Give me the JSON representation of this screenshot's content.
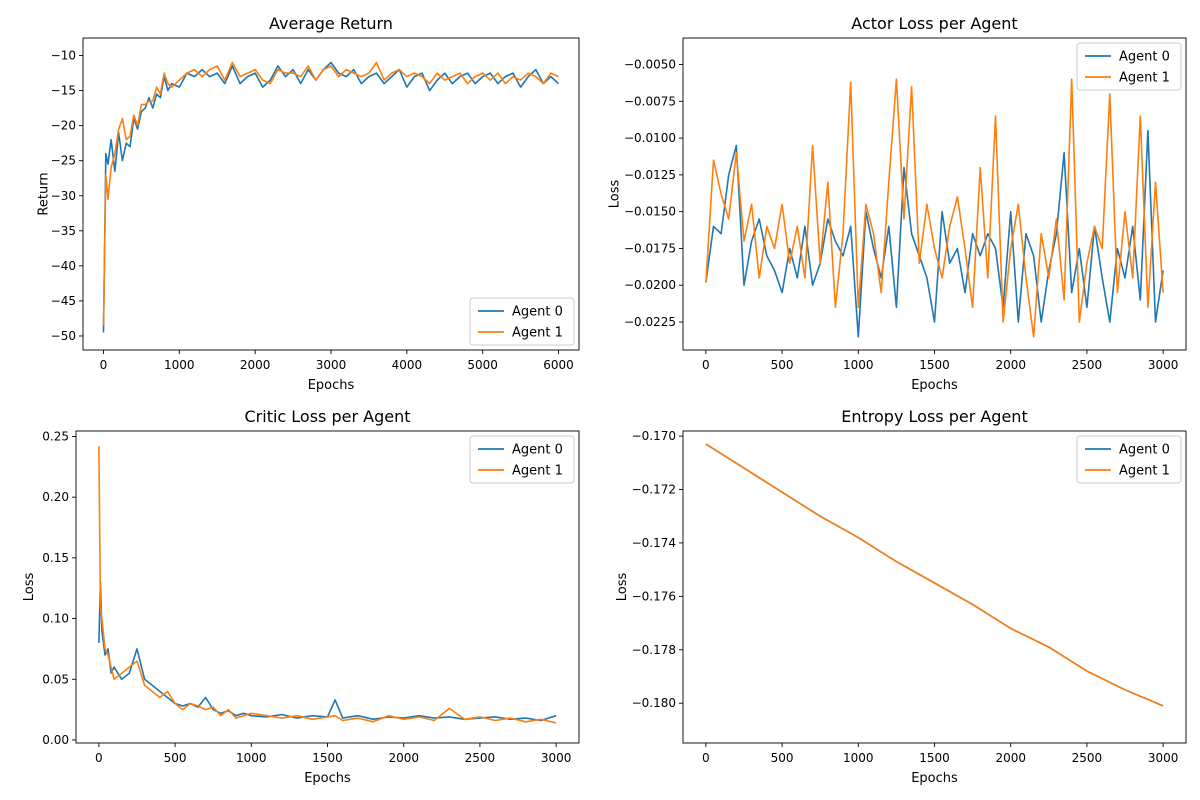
{
  "colors": {
    "agent0": "#1f77b4",
    "agent1": "#ff7f0e"
  },
  "chart_data": [
    {
      "id": "avg-return",
      "type": "line",
      "title": "Average Return",
      "xlabel": "Epochs",
      "ylabel": "Return",
      "xlim": [
        -270,
        6270
      ],
      "ylim": [
        -52.0,
        -7.5
      ],
      "xticks": [
        0,
        1000,
        2000,
        3000,
        4000,
        5000,
        6000
      ],
      "xtick_labels": [
        "0",
        "1000",
        "2000",
        "3000",
        "4000",
        "5000",
        "6000"
      ],
      "yticks": [
        -50,
        -45,
        -40,
        -35,
        -30,
        -25,
        -20,
        -15,
        -10
      ],
      "ytick_labels": [
        "−50",
        "−45",
        "−40",
        "−35",
        "−30",
        "−25",
        "−20",
        "−15",
        "−10"
      ],
      "legend_position": "lower-right",
      "series": [
        {
          "name": "Agent 0",
          "color": "#1f77b4",
          "x": [
            0,
            30,
            60,
            100,
            150,
            200,
            250,
            300,
            350,
            400,
            450,
            500,
            550,
            600,
            650,
            700,
            750,
            800,
            850,
            900,
            1000,
            1100,
            1200,
            1300,
            1400,
            1500,
            1600,
            1700,
            1800,
            1900,
            2000,
            2100,
            2200,
            2300,
            2400,
            2500,
            2600,
            2700,
            2800,
            2900,
            3000,
            3100,
            3200,
            3300,
            3400,
            3500,
            3600,
            3700,
            3800,
            3900,
            4000,
            4100,
            4200,
            4300,
            4400,
            4500,
            4600,
            4700,
            4800,
            4900,
            5000,
            5100,
            5200,
            5300,
            5400,
            5500,
            5600,
            5700,
            5800,
            5900,
            6000
          ],
          "y": [
            -49.5,
            -24,
            -25.5,
            -22,
            -26.5,
            -21,
            -25,
            -22.5,
            -23,
            -19,
            -20.5,
            -18,
            -17.5,
            -16,
            -17.5,
            -15.5,
            -16,
            -13,
            -15,
            -14,
            -14.5,
            -12.5,
            -13,
            -12,
            -13,
            -12.5,
            -14,
            -11.5,
            -14,
            -13,
            -12.5,
            -14.5,
            -13.5,
            -11.5,
            -13,
            -12,
            -14,
            -12,
            -13.5,
            -12,
            -11,
            -12.5,
            -13,
            -12,
            -14,
            -13,
            -12.5,
            -14,
            -13,
            -12,
            -14.5,
            -13,
            -12.5,
            -15,
            -13.5,
            -12.5,
            -14,
            -13,
            -12.5,
            -14,
            -13,
            -12.5,
            -14,
            -13,
            -12.5,
            -14.5,
            -13,
            -12,
            -14,
            -13,
            -14
          ]
        },
        {
          "name": "Agent 1",
          "color": "#ff7f0e",
          "x": [
            0,
            30,
            60,
            100,
            150,
            200,
            250,
            300,
            350,
            400,
            450,
            500,
            550,
            600,
            650,
            700,
            750,
            800,
            850,
            900,
            1000,
            1100,
            1200,
            1300,
            1400,
            1500,
            1600,
            1700,
            1800,
            1900,
            2000,
            2100,
            2200,
            2300,
            2400,
            2500,
            2600,
            2700,
            2800,
            2900,
            3000,
            3100,
            3200,
            3300,
            3400,
            3500,
            3600,
            3700,
            3800,
            3900,
            4000,
            4100,
            4200,
            4300,
            4400,
            4500,
            4600,
            4700,
            4800,
            4900,
            5000,
            5100,
            5200,
            5300,
            5400,
            5500,
            5600,
            5700,
            5800,
            5900,
            6000
          ],
          "y": [
            -48.5,
            -27,
            -30.5,
            -26,
            -24,
            -20.5,
            -19,
            -22,
            -21.5,
            -18.5,
            -20,
            -17,
            -17,
            -16.5,
            -16.5,
            -14.5,
            -15.5,
            -12.5,
            -14,
            -14.5,
            -13.5,
            -12.5,
            -12,
            -13,
            -12,
            -11.5,
            -13.5,
            -11,
            -13,
            -12.5,
            -12,
            -13.5,
            -14,
            -12,
            -12.5,
            -12.5,
            -13,
            -11.5,
            -13.5,
            -12,
            -11.5,
            -13,
            -12,
            -12.5,
            -13,
            -12.5,
            -11,
            -13.5,
            -12.5,
            -12,
            -13,
            -12.5,
            -13,
            -14,
            -12.5,
            -13.5,
            -13,
            -12.5,
            -14,
            -13,
            -12.5,
            -13.5,
            -12.5,
            -14,
            -13,
            -13.5,
            -12.5,
            -13,
            -14,
            -12.5,
            -13
          ]
        }
      ]
    },
    {
      "id": "actor-loss",
      "type": "line",
      "title": "Actor Loss per Agent",
      "xlabel": "Epochs",
      "ylabel": "Loss",
      "xlim": [
        -150,
        3150
      ],
      "ylim": [
        -0.0244,
        -0.0032
      ],
      "xticks": [
        0,
        500,
        1000,
        1500,
        2000,
        2500,
        3000
      ],
      "xtick_labels": [
        "0",
        "500",
        "1000",
        "1500",
        "2000",
        "2500",
        "3000"
      ],
      "yticks": [
        -0.0225,
        -0.02,
        -0.0175,
        -0.015,
        -0.0125,
        -0.01,
        -0.0075,
        -0.005
      ],
      "ytick_labels": [
        "−0.0225",
        "−0.0200",
        "−0.0175",
        "−0.0150",
        "−0.0125",
        "−0.0100",
        "−0.0075",
        "−0.0050"
      ],
      "legend_position": "top-right",
      "series": [
        {
          "name": "Agent 0",
          "color": "#1f77b4",
          "x": [
            0,
            50,
            100,
            150,
            200,
            250,
            300,
            350,
            400,
            450,
            500,
            550,
            600,
            650,
            700,
            750,
            800,
            850,
            900,
            950,
            1000,
            1050,
            1100,
            1150,
            1200,
            1250,
            1300,
            1350,
            1400,
            1450,
            1500,
            1550,
            1600,
            1650,
            1700,
            1750,
            1800,
            1850,
            1900,
            1950,
            2000,
            2050,
            2100,
            2150,
            2200,
            2250,
            2300,
            2350,
            2400,
            2450,
            2500,
            2550,
            2600,
            2650,
            2700,
            2750,
            2800,
            2850,
            2900,
            2950,
            3000
          ],
          "y": [
            -0.0198,
            -0.016,
            -0.0165,
            -0.0125,
            -0.0105,
            -0.02,
            -0.017,
            -0.0155,
            -0.018,
            -0.019,
            -0.0205,
            -0.0175,
            -0.0195,
            -0.016,
            -0.02,
            -0.0185,
            -0.0155,
            -0.017,
            -0.018,
            -0.016,
            -0.0235,
            -0.015,
            -0.0175,
            -0.0195,
            -0.016,
            -0.0215,
            -0.012,
            -0.0165,
            -0.018,
            -0.0195,
            -0.0225,
            -0.015,
            -0.0185,
            -0.0175,
            -0.0205,
            -0.0165,
            -0.018,
            -0.0165,
            -0.0175,
            -0.0215,
            -0.015,
            -0.0225,
            -0.0165,
            -0.018,
            -0.0225,
            -0.019,
            -0.0165,
            -0.011,
            -0.0205,
            -0.0175,
            -0.0215,
            -0.016,
            -0.0195,
            -0.0225,
            -0.0175,
            -0.0195,
            -0.016,
            -0.021,
            -0.0095,
            -0.0225,
            -0.019
          ]
        },
        {
          "name": "Agent 1",
          "color": "#ff7f0e",
          "x": [
            0,
            50,
            100,
            150,
            200,
            250,
            300,
            350,
            400,
            450,
            500,
            550,
            600,
            650,
            700,
            750,
            800,
            850,
            900,
            950,
            1000,
            1050,
            1100,
            1150,
            1200,
            1250,
            1300,
            1350,
            1400,
            1450,
            1500,
            1550,
            1600,
            1650,
            1700,
            1750,
            1800,
            1850,
            1900,
            1950,
            2000,
            2050,
            2100,
            2150,
            2200,
            2250,
            2300,
            2350,
            2400,
            2450,
            2500,
            2550,
            2600,
            2650,
            2700,
            2750,
            2800,
            2850,
            2900,
            2950,
            3000
          ],
          "y": [
            -0.0198,
            -0.0115,
            -0.0138,
            -0.0155,
            -0.011,
            -0.017,
            -0.0145,
            -0.0195,
            -0.016,
            -0.0175,
            -0.0145,
            -0.0185,
            -0.016,
            -0.0195,
            -0.0105,
            -0.0185,
            -0.013,
            -0.0215,
            -0.0165,
            -0.0062,
            -0.0215,
            -0.0145,
            -0.0165,
            -0.0205,
            -0.013,
            -0.006,
            -0.0155,
            -0.0065,
            -0.0185,
            -0.0145,
            -0.0175,
            -0.0195,
            -0.016,
            -0.014,
            -0.0175,
            -0.0215,
            -0.012,
            -0.0195,
            -0.0085,
            -0.0225,
            -0.0175,
            -0.0145,
            -0.0195,
            -0.0235,
            -0.0165,
            -0.0195,
            -0.0155,
            -0.021,
            -0.006,
            -0.0225,
            -0.0185,
            -0.016,
            -0.0175,
            -0.007,
            -0.0205,
            -0.015,
            -0.0195,
            -0.0085,
            -0.0215,
            -0.013,
            -0.0205
          ]
        }
      ]
    },
    {
      "id": "critic-loss",
      "type": "line",
      "title": "Critic Loss per Agent",
      "xlabel": "Epochs",
      "ylabel": "Loss",
      "xlim": [
        -150,
        3150
      ],
      "ylim": [
        -0.0025,
        0.2545
      ],
      "xticks": [
        0,
        500,
        1000,
        1500,
        2000,
        2500,
        3000
      ],
      "xtick_labels": [
        "0",
        "500",
        "1000",
        "1500",
        "2000",
        "2500",
        "3000"
      ],
      "yticks": [
        0.0,
        0.05,
        0.1,
        0.15,
        0.2,
        0.25
      ],
      "ytick_labels": [
        "0.00",
        "0.05",
        "0.10",
        "0.15",
        "0.20",
        "0.25"
      ],
      "legend_position": "top-right",
      "series": [
        {
          "name": "Agent 0",
          "color": "#1f77b4",
          "x": [
            0,
            10,
            20,
            40,
            60,
            80,
            100,
            150,
            200,
            250,
            300,
            350,
            400,
            450,
            500,
            550,
            600,
            650,
            700,
            750,
            800,
            850,
            900,
            950,
            1000,
            1100,
            1200,
            1300,
            1400,
            1500,
            1550,
            1600,
            1700,
            1800,
            1900,
            2000,
            2100,
            2200,
            2300,
            2400,
            2500,
            2600,
            2700,
            2800,
            2900,
            3000
          ],
          "y": [
            0.08,
            0.13,
            0.09,
            0.07,
            0.075,
            0.055,
            0.06,
            0.05,
            0.055,
            0.075,
            0.05,
            0.045,
            0.04,
            0.035,
            0.03,
            0.028,
            0.03,
            0.027,
            0.035,
            0.025,
            0.022,
            0.024,
            0.02,
            0.022,
            0.02,
            0.019,
            0.021,
            0.018,
            0.02,
            0.019,
            0.033,
            0.018,
            0.02,
            0.017,
            0.019,
            0.018,
            0.02,
            0.018,
            0.019,
            0.017,
            0.018,
            0.019,
            0.017,
            0.018,
            0.016,
            0.02
          ]
        },
        {
          "name": "Agent 1",
          "color": "#ff7f0e",
          "x": [
            0,
            10,
            20,
            40,
            60,
            80,
            100,
            150,
            200,
            250,
            300,
            350,
            400,
            450,
            500,
            550,
            600,
            650,
            700,
            750,
            800,
            850,
            900,
            950,
            1000,
            1100,
            1200,
            1300,
            1400,
            1500,
            1550,
            1600,
            1700,
            1800,
            1900,
            2000,
            2100,
            2200,
            2300,
            2400,
            2500,
            2600,
            2700,
            2800,
            2900,
            3000
          ],
          "y": [
            0.242,
            0.11,
            0.1,
            0.075,
            0.07,
            0.06,
            0.05,
            0.055,
            0.06,
            0.065,
            0.045,
            0.04,
            0.035,
            0.04,
            0.03,
            0.025,
            0.03,
            0.028,
            0.025,
            0.027,
            0.02,
            0.025,
            0.018,
            0.02,
            0.022,
            0.02,
            0.018,
            0.02,
            0.017,
            0.019,
            0.02,
            0.016,
            0.018,
            0.015,
            0.02,
            0.017,
            0.019,
            0.016,
            0.026,
            0.017,
            0.019,
            0.016,
            0.018,
            0.015,
            0.017,
            0.014
          ]
        }
      ]
    },
    {
      "id": "entropy-loss",
      "type": "line",
      "title": "Entropy Loss per Agent",
      "xlabel": "Epochs",
      "ylabel": "Loss",
      "xlim": [
        -150,
        3150
      ],
      "ylim": [
        -0.18149,
        -0.16981
      ],
      "xticks": [
        0,
        500,
        1000,
        1500,
        2000,
        2500,
        3000
      ],
      "xtick_labels": [
        "0",
        "500",
        "1000",
        "1500",
        "2000",
        "2500",
        "3000"
      ],
      "yticks": [
        -0.18,
        -0.178,
        -0.176,
        -0.174,
        -0.172,
        -0.17
      ],
      "ytick_labels": [
        "−0.180",
        "−0.178",
        "−0.176",
        "−0.174",
        "−0.172",
        "−0.170"
      ],
      "legend_position": "top-right",
      "series": [
        {
          "name": "Agent 0",
          "color": "#1f77b4",
          "x": [
            0,
            250,
            500,
            750,
            1000,
            1250,
            1500,
            1750,
            2000,
            2250,
            2500,
            2750,
            3000
          ],
          "y": [
            -0.1703,
            -0.1712,
            -0.1721,
            -0.173,
            -0.1738,
            -0.1747,
            -0.1755,
            -0.1763,
            -0.1772,
            -0.1779,
            -0.1788,
            -0.1795,
            -0.1801
          ]
        },
        {
          "name": "Agent 1",
          "color": "#ff7f0e",
          "x": [
            0,
            250,
            500,
            750,
            1000,
            1250,
            1500,
            1750,
            2000,
            2250,
            2500,
            2750,
            3000
          ],
          "y": [
            -0.1703,
            -0.1712,
            -0.1721,
            -0.173,
            -0.1738,
            -0.1747,
            -0.1755,
            -0.1763,
            -0.1772,
            -0.1779,
            -0.1788,
            -0.1795,
            -0.1801
          ]
        }
      ]
    }
  ]
}
